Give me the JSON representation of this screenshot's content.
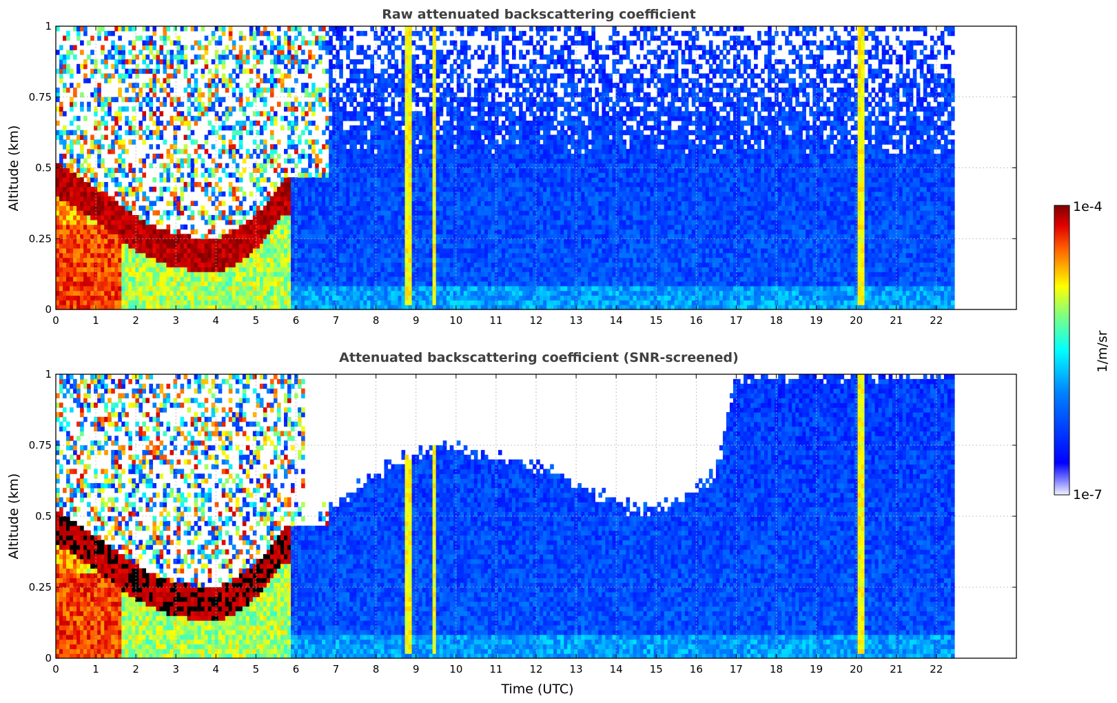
{
  "chart_data": [
    {
      "type": "heatmap",
      "title": "Raw attenuated backscattering coefficient",
      "xlabel": "",
      "ylabel": "Altitude (km)",
      "xlim": [
        0,
        24
      ],
      "ylim": [
        0,
        1
      ],
      "x_ticks": [
        "0",
        "1",
        "2",
        "3",
        "4",
        "5",
        "6",
        "7",
        "8",
        "9",
        "10",
        "11",
        "12",
        "13",
        "14",
        "15",
        "16",
        "17",
        "18",
        "19",
        "20",
        "21",
        "22"
      ],
      "y_ticks": [
        "0",
        "0.25",
        "0.5",
        "0.75",
        "1"
      ],
      "grid": true,
      "data_extent_x": [
        0,
        22.45
      ],
      "layer_top_km": [
        0.52,
        0.5,
        0.47,
        0.44,
        0.41,
        0.38,
        0.35,
        0.32,
        0.3,
        0.28,
        0.27,
        0.26,
        0.25,
        0.25,
        0.26,
        0.28,
        0.31,
        0.35,
        0.4,
        0.46
      ],
      "layer_x_hours": [
        0.0,
        0.3,
        0.6,
        0.9,
        1.2,
        1.5,
        1.8,
        2.1,
        2.4,
        2.7,
        3.0,
        3.3,
        3.6,
        3.9,
        4.2,
        4.5,
        4.8,
        5.1,
        5.4,
        5.7
      ],
      "bright_columns_hours": [
        8.8,
        9.45,
        20.1
      ]
    },
    {
      "type": "heatmap",
      "title": "Attenuated backscattering coefficient (SNR-screened)",
      "xlabel": "Time (UTC)",
      "ylabel": "Altitude (km)",
      "xlim": [
        0,
        24
      ],
      "ylim": [
        0,
        1
      ],
      "x_ticks": [
        "0",
        "1",
        "2",
        "3",
        "4",
        "5",
        "6",
        "7",
        "8",
        "9",
        "10",
        "11",
        "12",
        "13",
        "14",
        "15",
        "16",
        "17",
        "18",
        "19",
        "20",
        "21",
        "22"
      ],
      "y_ticks": [
        "0",
        "0.25",
        "0.5",
        "0.75",
        "1"
      ],
      "grid": true,
      "data_extent_x": [
        0,
        22.45
      ],
      "screen_top_x_hours": [
        6.5,
        7.5,
        8.5,
        9.5,
        10.5,
        11.5,
        12.5,
        13.5,
        14.5,
        15.5,
        16.5,
        17.0,
        18,
        19,
        20,
        21,
        22
      ],
      "screen_top_km": [
        0.5,
        0.6,
        0.7,
        0.75,
        0.72,
        0.7,
        0.65,
        0.58,
        0.52,
        0.55,
        0.65,
        1.0,
        1.0,
        1.0,
        1.0,
        1.0,
        1.0
      ],
      "bright_columns_hours": [
        8.8,
        9.45,
        20.1
      ]
    }
  ],
  "colorbar": {
    "label": "1/m/sr",
    "max_label": "1e-4",
    "min_label": "1e-7",
    "colormap": "jet",
    "colors": [
      "#e8e8ff",
      "#0000ff",
      "#00a0ff",
      "#00ffff",
      "#80ff80",
      "#ffff00",
      "#ff8000",
      "#ff0000",
      "#800000"
    ]
  }
}
